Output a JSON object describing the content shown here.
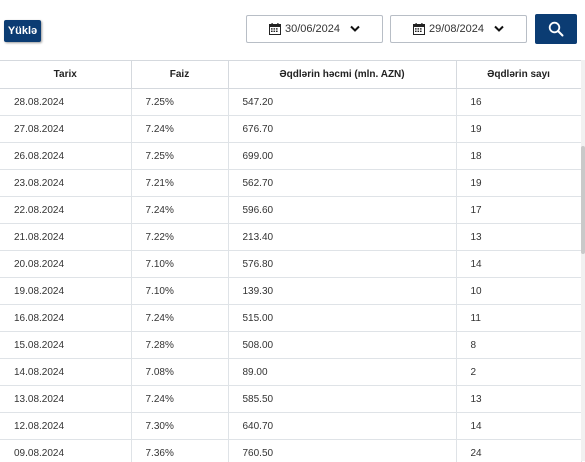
{
  "toolbar": {
    "upload_label": "Yüklə",
    "date_from": "30/06/2024",
    "date_to": "29/08/2024",
    "calendar_icon": "calendar-icon",
    "chevron_icon": "chevron-down-icon",
    "search_icon": "search-icon",
    "accent_color": "#0b3c73"
  },
  "table": {
    "columns": [
      "Tarix",
      "Faiz",
      "Əqdlərin həcmi (mln. AZN)",
      "Əqdlərin sayı"
    ],
    "rows": [
      [
        "28.08.2024",
        "7.25%",
        "547.20",
        "16"
      ],
      [
        "27.08.2024",
        "7.24%",
        "676.70",
        "19"
      ],
      [
        "26.08.2024",
        "7.25%",
        "699.00",
        "18"
      ],
      [
        "23.08.2024",
        "7.21%",
        "562.70",
        "19"
      ],
      [
        "22.08.2024",
        "7.24%",
        "596.60",
        "17"
      ],
      [
        "21.08.2024",
        "7.22%",
        "213.40",
        "13"
      ],
      [
        "20.08.2024",
        "7.10%",
        "576.80",
        "14"
      ],
      [
        "19.08.2024",
        "7.10%",
        "139.30",
        "10"
      ],
      [
        "16.08.2024",
        "7.24%",
        "515.00",
        "11"
      ],
      [
        "15.08.2024",
        "7.28%",
        "508.00",
        "8"
      ],
      [
        "14.08.2024",
        "7.08%",
        "89.00",
        "2"
      ],
      [
        "13.08.2024",
        "7.24%",
        "585.50",
        "13"
      ],
      [
        "12.08.2024",
        "7.30%",
        "640.70",
        "14"
      ],
      [
        "09.08.2024",
        "7.36%",
        "760.50",
        "24"
      ]
    ]
  }
}
